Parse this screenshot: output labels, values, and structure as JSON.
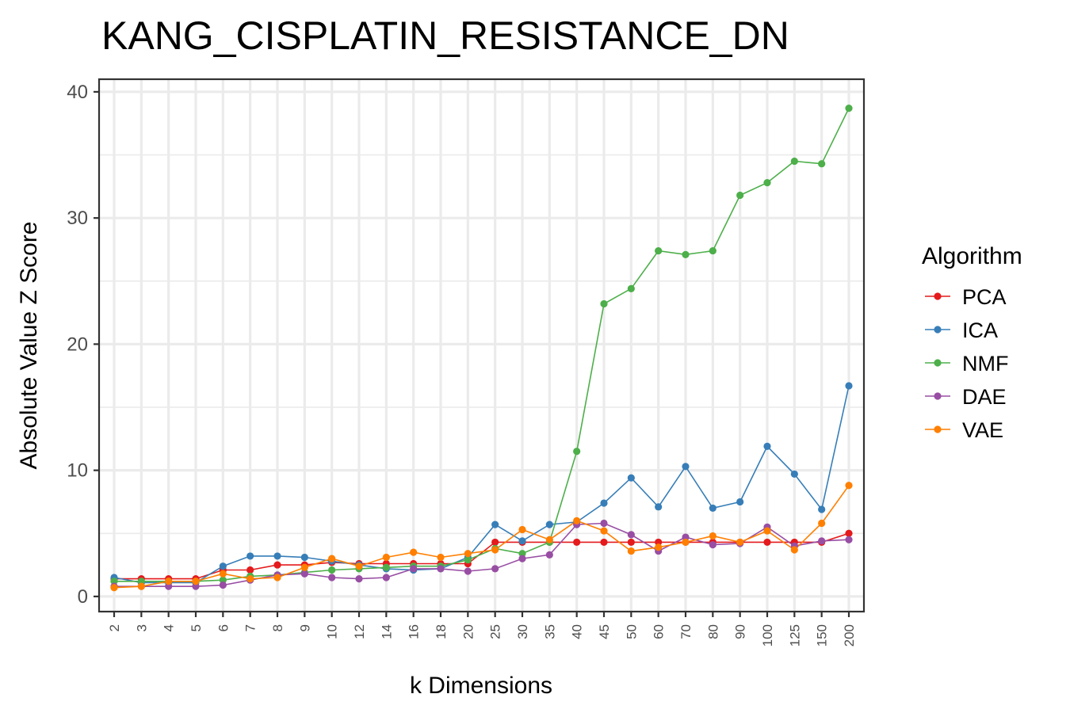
{
  "chart_data": {
    "type": "line",
    "title": "KANG_CISPLATIN_RESISTANCE_DN",
    "xlabel": "k Dimensions",
    "ylabel": "Absolute Value Z Score",
    "categories": [
      "2",
      "3",
      "4",
      "5",
      "6",
      "7",
      "8",
      "9",
      "10",
      "12",
      "14",
      "16",
      "18",
      "20",
      "25",
      "30",
      "35",
      "40",
      "45",
      "50",
      "60",
      "70",
      "80",
      "90",
      "100",
      "125",
      "150",
      "200"
    ],
    "ylim": [
      -1.2,
      41
    ],
    "yticks": [
      0,
      10,
      20,
      30,
      40
    ],
    "grid": true,
    "legend": {
      "title": "Algorithm",
      "position": "right"
    },
    "series": [
      {
        "name": "PCA",
        "color": "#e41a1c",
        "values": [
          1.4,
          1.4,
          1.4,
          1.4,
          2.1,
          2.1,
          2.5,
          2.5,
          2.7,
          2.6,
          2.6,
          2.6,
          2.6,
          2.6,
          4.3,
          4.3,
          4.3,
          4.3,
          4.3,
          4.3,
          4.3,
          4.3,
          4.3,
          4.3,
          4.3,
          4.3,
          4.3,
          5.0
        ]
      },
      {
        "name": "ICA",
        "color": "#377eb8",
        "values": [
          1.5,
          1.1,
          1.1,
          1.1,
          2.4,
          3.2,
          3.2,
          3.1,
          2.8,
          2.5,
          2.2,
          2.1,
          2.2,
          3.1,
          5.7,
          4.4,
          5.7,
          5.9,
          7.4,
          9.4,
          7.1,
          10.3,
          7.0,
          7.5,
          11.9,
          9.7,
          6.9,
          16.7
        ]
      },
      {
        "name": "NMF",
        "color": "#4daf4a",
        "values": [
          1.2,
          1.2,
          1.2,
          1.2,
          1.3,
          1.6,
          1.7,
          1.9,
          2.1,
          2.2,
          2.3,
          2.4,
          2.4,
          2.9,
          3.8,
          3.4,
          4.3,
          11.5,
          23.2,
          24.4,
          27.4,
          27.1,
          27.4,
          31.8,
          32.8,
          34.5,
          34.3,
          38.7
        ]
      },
      {
        "name": "DAE",
        "color": "#984ea3",
        "values": [
          0.8,
          0.8,
          0.8,
          0.8,
          0.9,
          1.3,
          1.7,
          1.8,
          1.5,
          1.4,
          1.5,
          2.2,
          2.2,
          2.0,
          2.2,
          3.0,
          3.3,
          5.7,
          5.8,
          4.9,
          3.6,
          4.7,
          4.1,
          4.2,
          5.5,
          4.0,
          4.4,
          4.5
        ]
      },
      {
        "name": "VAE",
        "color": "#ff7f00",
        "values": [
          0.7,
          0.8,
          1.2,
          1.2,
          1.8,
          1.4,
          1.5,
          2.3,
          3.0,
          2.4,
          3.1,
          3.5,
          3.1,
          3.4,
          3.7,
          5.3,
          4.5,
          6.0,
          5.2,
          3.6,
          3.9,
          4.3,
          4.8,
          4.3,
          5.2,
          3.7,
          5.8,
          8.8
        ]
      }
    ]
  }
}
